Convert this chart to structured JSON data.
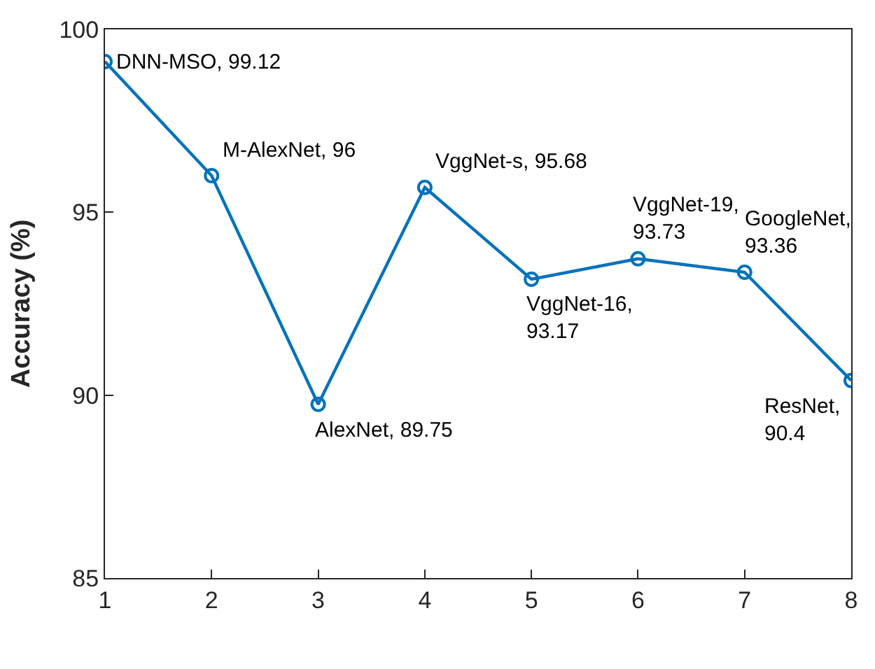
{
  "chart_data": {
    "type": "line",
    "ylabel": "Accuracy (%)",
    "x": [
      1,
      2,
      3,
      4,
      5,
      6,
      7,
      8
    ],
    "series": [
      {
        "color": "#0072bd",
        "values": [
          99.12,
          96,
          89.75,
          95.68,
          93.17,
          93.73,
          93.36,
          90.4
        ]
      }
    ],
    "xlim": [
      1,
      8
    ],
    "xticks": [
      1,
      2,
      3,
      4,
      5,
      6,
      7,
      8
    ],
    "ylim": [
      85,
      100
    ],
    "yticks": [
      85,
      90,
      95,
      100
    ],
    "marker": "circle",
    "line_style": "solid",
    "annotations": [
      {
        "text": "DNN-MSO, 99.12",
        "x": 1,
        "y": 99.12
      },
      {
        "text": "M-AlexNet, 96",
        "x": 2,
        "y": 96
      },
      {
        "text": "AlexNet, 89.75",
        "x": 3,
        "y": 89.75
      },
      {
        "text": "VggNet-s, 95.68",
        "x": 4,
        "y": 95.68
      },
      {
        "text": "VggNet-16,\n93.17",
        "x": 5,
        "y": 93.17
      },
      {
        "text": "VggNet-19,\n93.73",
        "x": 6,
        "y": 93.73
      },
      {
        "text": "GoogleNet,\n93.36",
        "x": 7,
        "y": 93.36
      },
      {
        "text": "ResNet,\n90.4",
        "x": 8,
        "y": 90.4
      }
    ]
  }
}
